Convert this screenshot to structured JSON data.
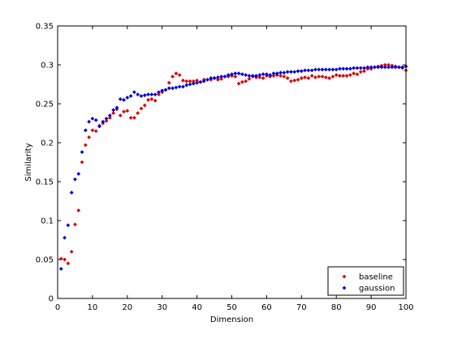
{
  "chart_data": {
    "type": "scatter",
    "title": "",
    "xlabel": "Dimension",
    "ylabel": "Similarity",
    "xlim": [
      0,
      100
    ],
    "ylim": [
      0,
      0.35
    ],
    "xticks": [
      0,
      10,
      20,
      30,
      40,
      50,
      60,
      70,
      80,
      90,
      100
    ],
    "yticks": [
      0,
      0.05,
      0.1,
      0.15,
      0.2,
      0.25,
      0.3,
      0.35
    ],
    "xtick_labels": [
      "0",
      "10",
      "20",
      "30",
      "40",
      "50",
      "60",
      "70",
      "80",
      "90",
      "100"
    ],
    "ytick_labels": [
      "0",
      "0.05",
      "0.1",
      "0.15",
      "0.2",
      "0.25",
      "0.3",
      "0.35"
    ],
    "grid": false,
    "legend_position": "bottom-right",
    "series": [
      {
        "name": "baseline",
        "color": "#dd0000",
        "marker": "diamond",
        "x": [
          1,
          2,
          3,
          4,
          5,
          6,
          7,
          8,
          9,
          10,
          11,
          12,
          13,
          14,
          15,
          16,
          17,
          18,
          19,
          20,
          21,
          22,
          23,
          24,
          25,
          26,
          27,
          28,
          29,
          30,
          31,
          32,
          33,
          34,
          35,
          36,
          37,
          38,
          39,
          40,
          41,
          42,
          43,
          44,
          45,
          46,
          47,
          48,
          49,
          50,
          51,
          52,
          53,
          54,
          55,
          56,
          57,
          58,
          59,
          60,
          61,
          62,
          63,
          64,
          65,
          66,
          67,
          68,
          69,
          70,
          71,
          72,
          73,
          74,
          75,
          76,
          77,
          78,
          79,
          80,
          81,
          82,
          83,
          84,
          85,
          86,
          87,
          88,
          89,
          90,
          91,
          92,
          93,
          94,
          95,
          96,
          97,
          98,
          99,
          100
        ],
        "y": [
          0.051,
          0.05,
          0.045,
          0.06,
          0.095,
          0.113,
          0.175,
          0.197,
          0.207,
          0.216,
          0.215,
          0.222,
          0.225,
          0.228,
          0.232,
          0.238,
          0.243,
          0.235,
          0.24,
          0.241,
          0.232,
          0.232,
          0.238,
          0.244,
          0.248,
          0.255,
          0.256,
          0.254,
          0.262,
          0.265,
          0.268,
          0.277,
          0.285,
          0.289,
          0.287,
          0.28,
          0.279,
          0.279,
          0.279,
          0.28,
          0.278,
          0.281,
          0.281,
          0.281,
          0.283,
          0.281,
          0.282,
          0.285,
          0.285,
          0.286,
          0.285,
          0.276,
          0.278,
          0.279,
          0.282,
          0.285,
          0.284,
          0.284,
          0.283,
          0.286,
          0.285,
          0.286,
          0.287,
          0.286,
          0.285,
          0.283,
          0.279,
          0.28,
          0.281,
          0.283,
          0.284,
          0.283,
          0.286,
          0.284,
          0.285,
          0.285,
          0.284,
          0.283,
          0.285,
          0.287,
          0.286,
          0.286,
          0.286,
          0.287,
          0.289,
          0.288,
          0.291,
          0.292,
          0.295,
          0.295,
          0.297,
          0.298,
          0.299,
          0.3,
          0.3,
          0.299,
          0.298,
          0.297,
          0.296,
          0.293
        ]
      },
      {
        "name": "gaussion",
        "color": "#0000cc",
        "marker": "diamond",
        "x": [
          1,
          2,
          3,
          4,
          5,
          6,
          7,
          8,
          9,
          10,
          11,
          12,
          13,
          14,
          15,
          16,
          17,
          18,
          19,
          20,
          21,
          22,
          23,
          24,
          25,
          26,
          27,
          28,
          29,
          30,
          31,
          32,
          33,
          34,
          35,
          36,
          37,
          38,
          39,
          40,
          41,
          42,
          43,
          44,
          45,
          46,
          47,
          48,
          49,
          50,
          51,
          52,
          53,
          54,
          55,
          56,
          57,
          58,
          59,
          60,
          61,
          62,
          63,
          64,
          65,
          66,
          67,
          68,
          69,
          70,
          71,
          72,
          73,
          74,
          75,
          76,
          77,
          78,
          79,
          80,
          81,
          82,
          83,
          84,
          85,
          86,
          87,
          88,
          89,
          90,
          91,
          92,
          93,
          94,
          95,
          96,
          97,
          98,
          99,
          100
        ],
        "y": [
          0.038,
          0.078,
          0.094,
          0.136,
          0.153,
          0.16,
          0.188,
          0.216,
          0.227,
          0.231,
          0.229,
          0.221,
          0.227,
          0.231,
          0.235,
          0.242,
          0.245,
          0.256,
          0.255,
          0.258,
          0.26,
          0.265,
          0.262,
          0.26,
          0.261,
          0.262,
          0.262,
          0.262,
          0.265,
          0.267,
          0.268,
          0.27,
          0.27,
          0.271,
          0.272,
          0.272,
          0.274,
          0.275,
          0.276,
          0.277,
          0.278,
          0.279,
          0.281,
          0.283,
          0.283,
          0.284,
          0.285,
          0.285,
          0.287,
          0.288,
          0.289,
          0.289,
          0.288,
          0.287,
          0.286,
          0.286,
          0.286,
          0.287,
          0.288,
          0.288,
          0.287,
          0.289,
          0.289,
          0.29,
          0.29,
          0.291,
          0.291,
          0.291,
          0.292,
          0.292,
          0.293,
          0.293,
          0.293,
          0.294,
          0.294,
          0.294,
          0.294,
          0.294,
          0.294,
          0.294,
          0.295,
          0.295,
          0.295,
          0.295,
          0.296,
          0.296,
          0.296,
          0.296,
          0.297,
          0.297,
          0.297,
          0.297,
          0.297,
          0.297,
          0.297,
          0.297,
          0.297,
          0.297,
          0.297,
          0.298
        ]
      }
    ]
  }
}
